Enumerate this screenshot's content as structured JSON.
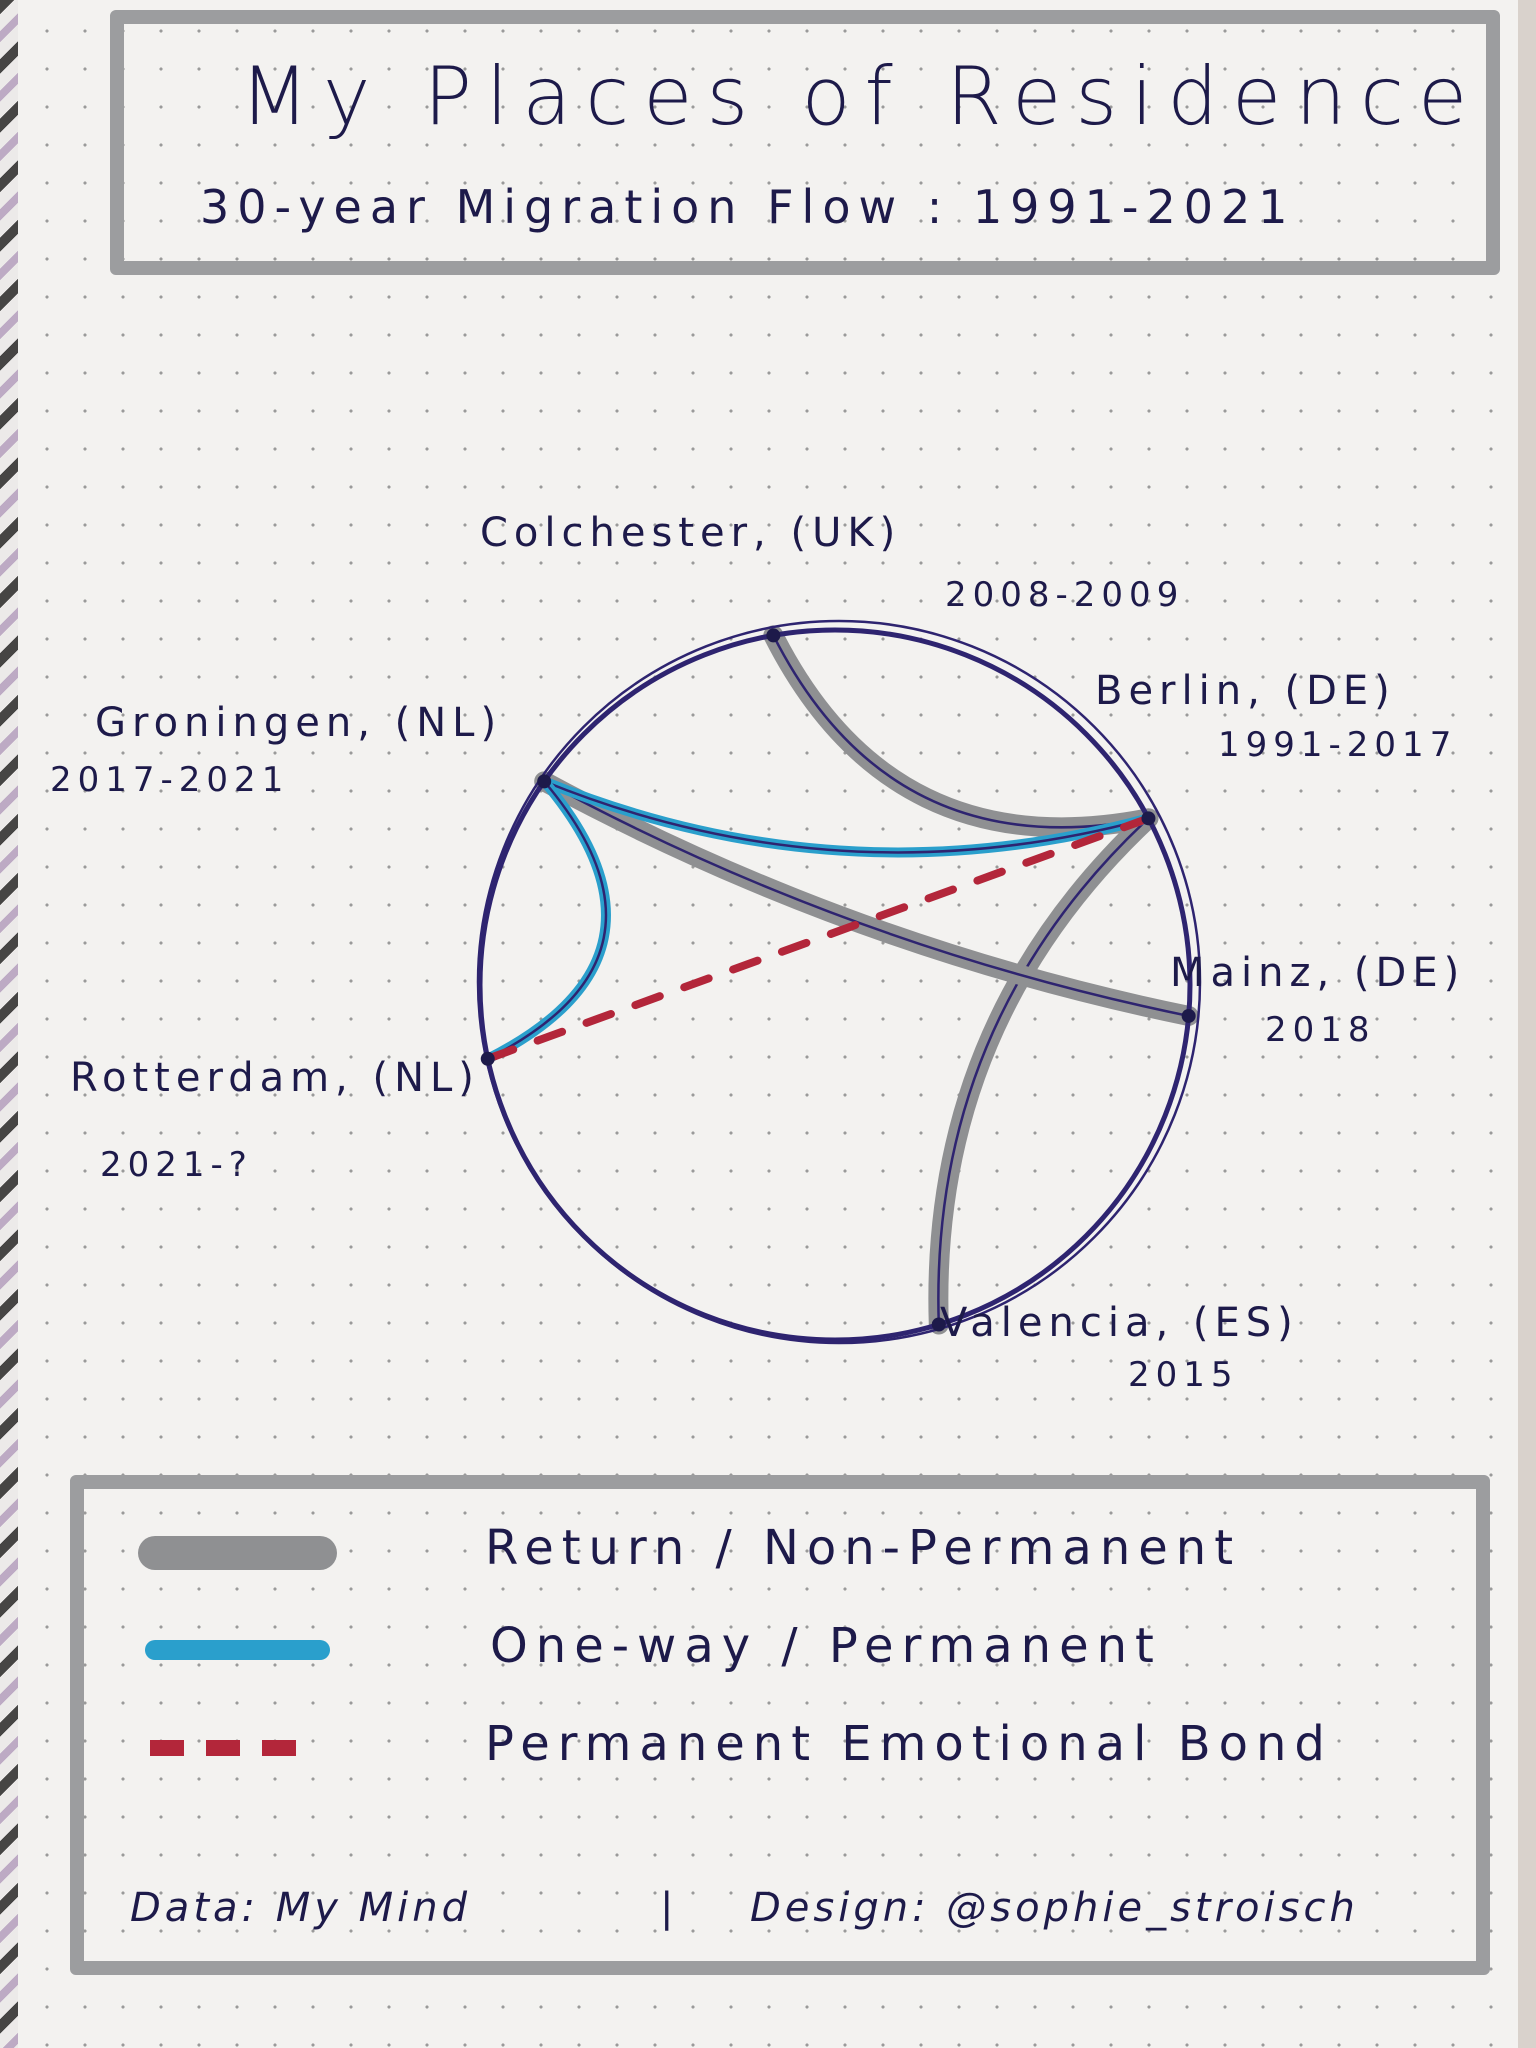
{
  "header": {
    "title": "My Places of Residence",
    "subtitle": "30-year Migration Flow : 1991-2021"
  },
  "places": [
    {
      "name": "Colchester, (UK)",
      "years": "2008-2009"
    },
    {
      "name": "Berlin, (DE)",
      "years": "1991-2017"
    },
    {
      "name": "Mainz, (DE)",
      "years": "2018"
    },
    {
      "name": "Valencia, (ES)",
      "years": "2015"
    },
    {
      "name": "Rotterdam, (NL)",
      "years": "2021-?"
    },
    {
      "name": "Groningen, (NL)",
      "years": "2017-2021"
    }
  ],
  "flows": [
    {
      "from": "Colchester, (UK)",
      "to": "Berlin, (DE)",
      "type": "return"
    },
    {
      "from": "Berlin, (DE)",
      "to": "Valencia, (ES)",
      "type": "return"
    },
    {
      "from": "Groningen, (NL)",
      "to": "Mainz, (DE)",
      "type": "return"
    },
    {
      "from": "Berlin, (DE)",
      "to": "Groningen, (NL)",
      "type": "one-way"
    },
    {
      "from": "Groningen, (NL)",
      "to": "Rotterdam, (NL)",
      "type": "one-way"
    },
    {
      "from": "Berlin, (DE)",
      "to": "Rotterdam, (NL)",
      "type": "emotional-bond"
    }
  ],
  "legend": [
    {
      "label": "Return / Non-Permanent",
      "type": "return",
      "color": "#8f9092"
    },
    {
      "label": "One-way / Permanent",
      "type": "one-way",
      "color": "#2a9fcc"
    },
    {
      "label": "Permanent Emotional Bond",
      "type": "emotional-bond",
      "color": "#b3263a"
    }
  ],
  "credits": {
    "data": "Data: My Mind",
    "separator": "|",
    "design": "Design: @sophie_stroisch"
  },
  "colors": {
    "ink": "#1d1a4a",
    "frame": "#9c9d9f",
    "circle": "#2e2470"
  }
}
